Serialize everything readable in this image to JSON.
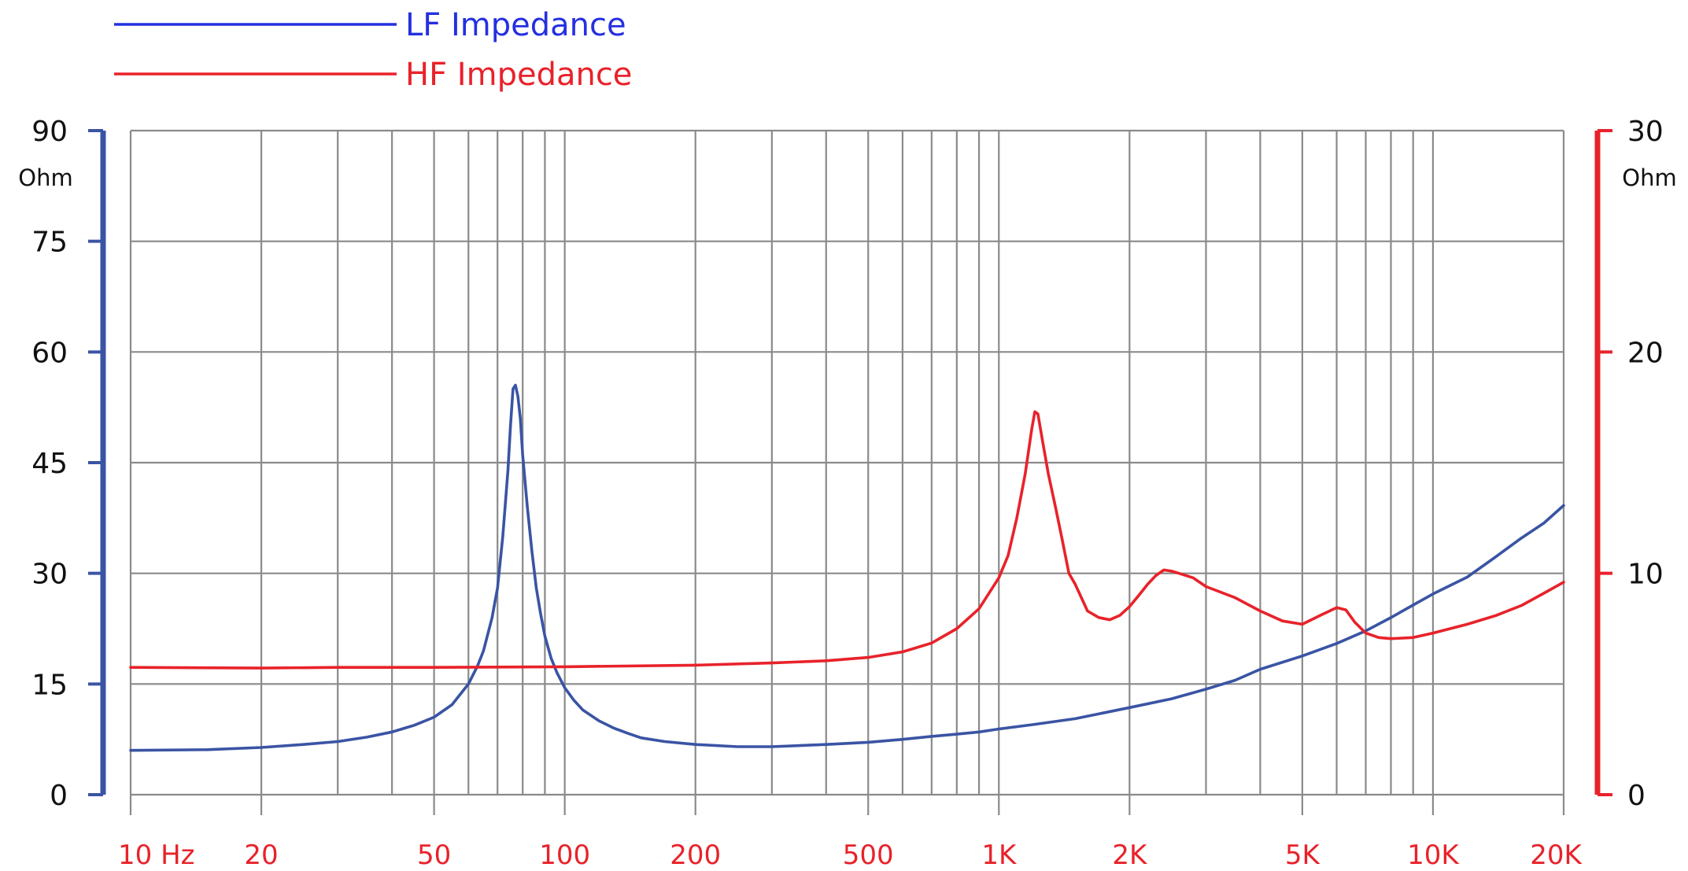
{
  "chart_data": {
    "type": "line",
    "x_scale": "log",
    "xlim": [
      10,
      20000
    ],
    "x_ticks": [
      {
        "value": 10,
        "label": "10  Hz"
      },
      {
        "value": 20,
        "label": "20"
      },
      {
        "value": 50,
        "label": "50"
      },
      {
        "value": 100,
        "label": "100"
      },
      {
        "value": 200,
        "label": "200"
      },
      {
        "value": 500,
        "label": "500"
      },
      {
        "value": 1000,
        "label": "1K"
      },
      {
        "value": 2000,
        "label": "2K"
      },
      {
        "value": 5000,
        "label": "5K"
      },
      {
        "value": 10000,
        "label": "10K"
      },
      {
        "value": 20000,
        "label": "20K"
      }
    ],
    "x_label_color": "#e8222a",
    "y_left": {
      "lim": [
        0,
        90
      ],
      "ticks": [
        "0",
        "15",
        "30",
        "45",
        "60",
        "75",
        "90"
      ],
      "unit": "Ohm",
      "color": "#3a54a4"
    },
    "y_right": {
      "lim": [
        0,
        30
      ],
      "ticks": [
        "0",
        "10",
        "20",
        "30"
      ],
      "unit": "Ohm",
      "color": "#e8222a"
    },
    "grid": true,
    "legend_position": "top-left",
    "series": [
      {
        "name": "LF Impedance",
        "axis": "left",
        "color": "#3a54a4",
        "legend_color": "#2430e0",
        "points": [
          [
            10,
            6.0
          ],
          [
            15,
            6.1
          ],
          [
            20,
            6.4
          ],
          [
            25,
            6.8
          ],
          [
            30,
            7.2
          ],
          [
            35,
            7.8
          ],
          [
            40,
            8.5
          ],
          [
            45,
            9.4
          ],
          [
            50,
            10.5
          ],
          [
            55,
            12.2
          ],
          [
            60,
            15.0
          ],
          [
            63,
            17.5
          ],
          [
            65,
            19.5
          ],
          [
            68,
            24.0
          ],
          [
            70,
            28.0
          ],
          [
            72,
            35.0
          ],
          [
            74,
            44.0
          ],
          [
            75,
            50.0
          ],
          [
            76,
            55.0
          ],
          [
            77,
            55.5
          ],
          [
            78,
            54.0
          ],
          [
            79,
            51.0
          ],
          [
            80,
            46.0
          ],
          [
            82,
            39.0
          ],
          [
            84,
            33.0
          ],
          [
            86,
            28.0
          ],
          [
            88,
            24.5
          ],
          [
            90,
            21.5
          ],
          [
            93,
            18.5
          ],
          [
            96,
            16.5
          ],
          [
            100,
            14.5
          ],
          [
            105,
            12.8
          ],
          [
            110,
            11.5
          ],
          [
            120,
            10.0
          ],
          [
            130,
            9.0
          ],
          [
            140,
            8.3
          ],
          [
            150,
            7.7
          ],
          [
            170,
            7.2
          ],
          [
            200,
            6.8
          ],
          [
            250,
            6.5
          ],
          [
            300,
            6.5
          ],
          [
            400,
            6.8
          ],
          [
            500,
            7.1
          ],
          [
            600,
            7.5
          ],
          [
            700,
            7.9
          ],
          [
            800,
            8.2
          ],
          [
            900,
            8.5
          ],
          [
            1000,
            8.9
          ],
          [
            1200,
            9.5
          ],
          [
            1500,
            10.3
          ],
          [
            2000,
            11.8
          ],
          [
            2500,
            13.0
          ],
          [
            3000,
            14.3
          ],
          [
            3500,
            15.5
          ],
          [
            4000,
            17.0
          ],
          [
            5000,
            18.8
          ],
          [
            6000,
            20.5
          ],
          [
            7000,
            22.2
          ],
          [
            8000,
            24.0
          ],
          [
            9000,
            25.7
          ],
          [
            10000,
            27.2
          ],
          [
            12000,
            29.5
          ],
          [
            14000,
            32.3
          ],
          [
            16000,
            34.8
          ],
          [
            18000,
            36.8
          ],
          [
            20000,
            39.2
          ]
        ]
      },
      {
        "name": "HF Impedance",
        "axis": "right",
        "color": "#e8222a",
        "legend_color": "#e8222a",
        "points": [
          [
            10,
            5.75
          ],
          [
            20,
            5.72
          ],
          [
            30,
            5.75
          ],
          [
            50,
            5.75
          ],
          [
            100,
            5.78
          ],
          [
            200,
            5.85
          ],
          [
            300,
            5.95
          ],
          [
            400,
            6.05
          ],
          [
            500,
            6.2
          ],
          [
            600,
            6.45
          ],
          [
            700,
            6.85
          ],
          [
            800,
            7.5
          ],
          [
            900,
            8.4
          ],
          [
            1000,
            9.8
          ],
          [
            1050,
            10.8
          ],
          [
            1100,
            12.5
          ],
          [
            1150,
            14.5
          ],
          [
            1190,
            16.5
          ],
          [
            1210,
            17.3
          ],
          [
            1230,
            17.2
          ],
          [
            1260,
            16.0
          ],
          [
            1300,
            14.5
          ],
          [
            1350,
            13.0
          ],
          [
            1400,
            11.5
          ],
          [
            1450,
            10.0
          ],
          [
            1500,
            9.5
          ],
          [
            1600,
            8.3
          ],
          [
            1700,
            8.0
          ],
          [
            1800,
            7.9
          ],
          [
            1900,
            8.1
          ],
          [
            2000,
            8.5
          ],
          [
            2100,
            9.0
          ],
          [
            2200,
            9.5
          ],
          [
            2300,
            9.9
          ],
          [
            2400,
            10.15
          ],
          [
            2500,
            10.1
          ],
          [
            2600,
            10.0
          ],
          [
            2800,
            9.8
          ],
          [
            3000,
            9.4
          ],
          [
            3500,
            8.9
          ],
          [
            4000,
            8.3
          ],
          [
            4500,
            7.85
          ],
          [
            5000,
            7.7
          ],
          [
            5500,
            8.1
          ],
          [
            6000,
            8.45
          ],
          [
            6300,
            8.35
          ],
          [
            6600,
            7.8
          ],
          [
            7000,
            7.3
          ],
          [
            7500,
            7.1
          ],
          [
            8000,
            7.05
          ],
          [
            9000,
            7.1
          ],
          [
            10000,
            7.3
          ],
          [
            12000,
            7.7
          ],
          [
            14000,
            8.1
          ],
          [
            16000,
            8.55
          ],
          [
            18000,
            9.1
          ],
          [
            20000,
            9.6
          ]
        ]
      }
    ]
  }
}
